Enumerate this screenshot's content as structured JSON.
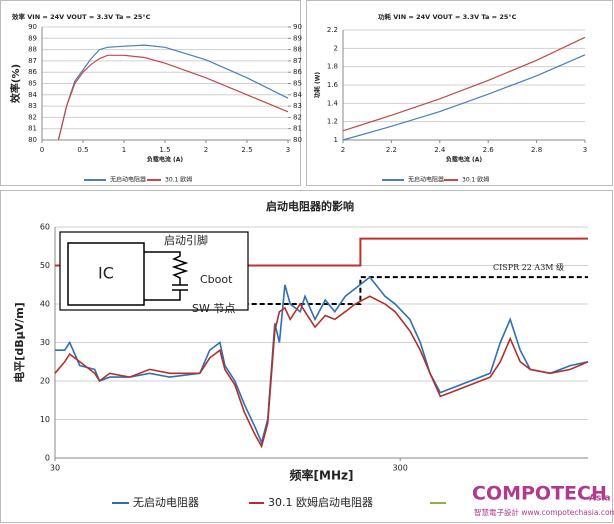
{
  "chart_data": [
    {
      "type": "line",
      "title": "效率 VIN = 24V VOUT = 3.3V Ta = 25°C",
      "xlabel": "负载电流 (A)",
      "ylabel": "效率(%)",
      "x": [
        0.2,
        0.3,
        0.4,
        0.5,
        0.6,
        0.7,
        0.8,
        1.0,
        1.25,
        1.5,
        2.0,
        2.5,
        3.0
      ],
      "xlim": [
        0,
        3
      ],
      "xticks": [
        0,
        0.5,
        1,
        1.5,
        2,
        2.5,
        3
      ],
      "ylim": [
        80,
        90
      ],
      "yticks": [
        80,
        81,
        82,
        83,
        84,
        85,
        86,
        87,
        88,
        89,
        90
      ],
      "y2lim": [
        80,
        90
      ],
      "y2ticks": [
        80,
        81,
        82,
        83,
        84,
        85,
        86,
        87,
        88,
        89,
        90
      ],
      "grid": true,
      "series": [
        {
          "name": "无启动电阻器",
          "color": "#4a7ebb",
          "values": [
            80,
            83,
            85.2,
            86.2,
            87.2,
            88,
            88.2,
            88.3,
            88.4,
            88.2,
            87.1,
            85.5,
            83.7
          ]
        },
        {
          "name": "30.1 欧姆",
          "color": "#be4b48",
          "values": [
            80,
            83,
            85,
            86,
            86.7,
            87.2,
            87.5,
            87.5,
            87.3,
            86.8,
            85.5,
            84,
            82.5
          ]
        }
      ]
    },
    {
      "type": "line",
      "title": "功耗 VIN = 24V VOUT = 3.3V Ta = 25°C",
      "xlabel": "负载电流 (A)",
      "ylabel": "功耗 (W)",
      "x": [
        2,
        2.2,
        2.4,
        2.6,
        2.8,
        3
      ],
      "xlim": [
        2,
        3
      ],
      "xticks": [
        2,
        2.2,
        2.4,
        2.6,
        2.8,
        3
      ],
      "ylim": [
        1,
        2.2
      ],
      "yticks": [
        1,
        1.2,
        1.4,
        1.6,
        1.8,
        2,
        2.2
      ],
      "grid": true,
      "series": [
        {
          "name": "无启动电阻器",
          "color": "#4a7ebb",
          "values": [
            1.0,
            1.15,
            1.31,
            1.5,
            1.7,
            1.93
          ]
        },
        {
          "name": "30.1 欧姆",
          "color": "#be4b48",
          "values": [
            1.1,
            1.27,
            1.45,
            1.65,
            1.87,
            2.12
          ]
        }
      ]
    },
    {
      "type": "line",
      "title": "启动电阻器的影响",
      "xlabel": "频率[MHz]",
      "ylabel": "电平[dBμV/m]",
      "xlog": true,
      "x": [
        30,
        32,
        33.1,
        35.4,
        39.1,
        40.4,
        43.2,
        49.4,
        56.4,
        64.5,
        78.8,
        84.2,
        90.1,
        93.2,
        99.6,
        106,
        114,
        119,
        124,
        130,
        134,
        139,
        144,
        154,
        159,
        170,
        182,
        194,
        208,
        222,
        245,
        271,
        290,
        320,
        343,
        366,
        392,
        419,
        479,
        547,
        585,
        625,
        668,
        714,
        816,
        933,
        1050
      ],
      "xlim": [
        30,
        1050
      ],
      "xticks": [
        30,
        300
      ],
      "ylim": [
        0,
        60
      ],
      "yticks": [
        0,
        10,
        20,
        30,
        40,
        50,
        60
      ],
      "grid": true,
      "series": [
        {
          "name": "无启动电阻器",
          "color": "#2f6eb5",
          "values": [
            28,
            28,
            30,
            24,
            23,
            20,
            21,
            21,
            22,
            21,
            22,
            28,
            30,
            24,
            20,
            14,
            8,
            4,
            10,
            35,
            30,
            45,
            40,
            38,
            42,
            36,
            41,
            38,
            42,
            44,
            47,
            42,
            40,
            36,
            30,
            22,
            17,
            18,
            20,
            22,
            30,
            36,
            28,
            23,
            22,
            24,
            25
          ]
        },
        {
          "name": "30.1 欧姆启动电阻器",
          "color": "#b0302c",
          "values": [
            22,
            25,
            27,
            25,
            22,
            20,
            22,
            21,
            23,
            22,
            22,
            26,
            28,
            23,
            19,
            12,
            6,
            3,
            9,
            33,
            38,
            39,
            36,
            40,
            38,
            34,
            37,
            36,
            38,
            40,
            42,
            40,
            38,
            33,
            28,
            22,
            16,
            17,
            19,
            21,
            25,
            31,
            25,
            23,
            22,
            23,
            25
          ]
        }
      ],
      "limit_lines": [
        {
          "color": "#c0302c",
          "dashed": false,
          "x": [
            30,
            230,
            230,
            1050
          ],
          "values": [
            50,
            50,
            57,
            57
          ]
        },
        {
          "color": "#000000",
          "dashed": true,
          "x": [
            90,
            230,
            230,
            1050
          ],
          "values": [
            40,
            40,
            47,
            47
          ]
        }
      ],
      "annotation": "CISPR 22 A3M 级",
      "inset": {
        "ic": "IC",
        "pin": "启动引脚",
        "cap": "Cboot",
        "node": "SW 节点"
      }
    }
  ],
  "logo": {
    "name": "COMPOTECH",
    "suffix": "Asia",
    "tagline": "智慧電子設計 www.compotechasia.com"
  }
}
